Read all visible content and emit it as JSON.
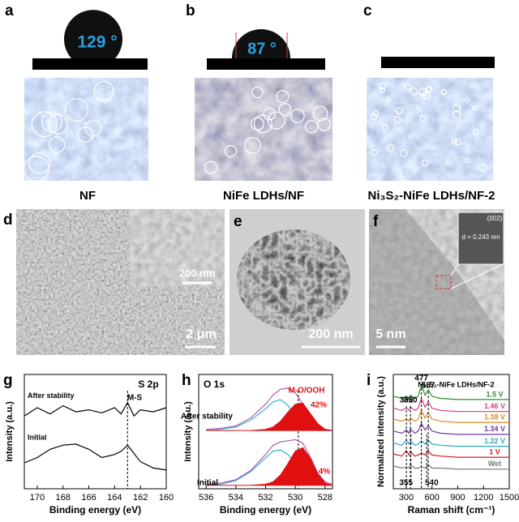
{
  "panels": [
    {
      "label": "a",
      "angle": "129 °",
      "caption": "NF"
    },
    {
      "label": "b",
      "angle": "87 °",
      "caption": "NiFe LDHs/NF"
    },
    {
      "label": "c",
      "caption": "Ni₃S₂-NiFe LDHs/NF-2"
    }
  ],
  "microscopy": [
    {
      "label": "d",
      "scale_bars": [
        "200 nm",
        "2 μm"
      ]
    },
    {
      "label": "e",
      "scale_bars": [
        "200 nm"
      ]
    },
    {
      "label": "f",
      "scale_bars": [
        "5 nm"
      ],
      "inset": [
        "(002)",
        "d = 0.243 nm"
      ]
    }
  ],
  "chart_data": [
    {
      "type": "line",
      "label": "g",
      "title": "S 2p",
      "xlabel": "Binding energy (eV)",
      "ylabel": "Intensity (a.u.)",
      "x": [
        171,
        170,
        169,
        168,
        167,
        166,
        165,
        164,
        163.5,
        163,
        162.5,
        162,
        161,
        160
      ],
      "xlim": [
        171,
        160
      ],
      "ylim": [
        0,
        11
      ],
      "xticks": [
        170,
        168,
        166,
        164,
        162,
        160
      ],
      "series": [
        {
          "name": "After stability",
          "color": "#000000",
          "values": [
            7.0,
            7.8,
            7.2,
            8.0,
            7.4,
            7.6,
            7.3,
            7.8,
            7.2,
            8.3,
            7.0,
            7.6,
            7.4,
            7.8
          ]
        },
        {
          "name": "Initial",
          "color": "#000000",
          "values": [
            2.5,
            3.0,
            3.8,
            4.2,
            4.3,
            3.8,
            3.0,
            3.3,
            3.6,
            4.2,
            3.4,
            2.6,
            2.0,
            1.8
          ]
        }
      ],
      "annotations": [
        "M-S"
      ],
      "reference_lines": [
        163
      ]
    },
    {
      "type": "line",
      "label": "h",
      "title": "O 1s",
      "xlabel": "Binding energy (eV)",
      "ylabel": "Intensity (a.u.)",
      "x": [
        536,
        535,
        534,
        533,
        532,
        531.5,
        531,
        530.5,
        530,
        529.5,
        529,
        528.5,
        528,
        527.5
      ],
      "xlim": [
        536.5,
        527.5
      ],
      "ylim": [
        0,
        10
      ],
      "xticks": [
        536,
        534,
        532,
        530,
        528
      ],
      "series": [
        {
          "color": "#b05ab8",
          "values": [
            5.2,
            5.3,
            5.5,
            6.2,
            7.4,
            8.2,
            8.7,
            8.8,
            8.4,
            7.4,
            6.2,
            5.5,
            5.2,
            5.1
          ]
        },
        {
          "color": "#33b5c8",
          "values": [
            5.1,
            5.2,
            5.4,
            6.0,
            7.0,
            7.6,
            7.8,
            7.3,
            6.4,
            5.6,
            5.2,
            5.1,
            5.1,
            5.1
          ]
        },
        {
          "color": "#e01010",
          "fill": true,
          "values": [
            5.1,
            5.1,
            5.1,
            5.1,
            5.2,
            5.4,
            5.9,
            6.7,
            7.4,
            7.5,
            6.6,
            5.7,
            5.2,
            5.1
          ]
        },
        {
          "color": "#b05ab8",
          "values": [
            0.4,
            0.5,
            0.8,
            1.6,
            3.0,
            3.8,
            4.1,
            4.2,
            4.3,
            4.0,
            2.8,
            1.4,
            0.6,
            0.4
          ]
        },
        {
          "color": "#33b5c8",
          "values": [
            0.3,
            0.4,
            0.7,
            1.5,
            2.7,
            3.3,
            3.4,
            3.0,
            2.2,
            1.3,
            0.7,
            0.4,
            0.3,
            0.3
          ]
        },
        {
          "color": "#e01010",
          "fill": true,
          "values": [
            0.3,
            0.3,
            0.3,
            0.3,
            0.4,
            0.6,
            1.2,
            2.2,
            3.3,
            3.6,
            2.7,
            1.3,
            0.5,
            0.3
          ]
        }
      ],
      "annotations": [
        "M-O/OOH",
        "42%",
        "After stability",
        "Initial",
        "34.4%"
      ],
      "reference_lines": [
        529.8
      ]
    },
    {
      "type": "line",
      "label": "i",
      "title": "Ni₃S₂-NiFe LDHs/NF-2",
      "xlabel": "Raman shift (cm⁻¹)",
      "ylabel": "Normalized intensity (a.u.)",
      "x": [
        150,
        250,
        302,
        330,
        350,
        400,
        440,
        477,
        520,
        557,
        600,
        700,
        900,
        1200,
        1500
      ],
      "xlim": [
        150,
        1500
      ],
      "ylim": [
        0,
        10.5
      ],
      "xticks": [
        300,
        600,
        900,
        1200,
        1500
      ],
      "series": [
        {
          "name": "1.5 V",
          "color": "#2e8b2e",
          "values": [
            8.5,
            8.3,
            8.5,
            8.3,
            8.6,
            8.3,
            8.5,
            9.5,
            8.6,
            9.1,
            8.5,
            8.3,
            8.2,
            8.2,
            8.2
          ]
        },
        {
          "name": "1.46 V",
          "color": "#d23c8c",
          "values": [
            7.4,
            7.2,
            7.4,
            7.2,
            7.5,
            7.2,
            7.4,
            8.3,
            7.5,
            8.0,
            7.4,
            7.2,
            7.1,
            7.1,
            7.1
          ]
        },
        {
          "name": "1.38 V",
          "color": "#e08a1e",
          "values": [
            6.4,
            6.2,
            6.4,
            6.2,
            6.5,
            6.2,
            6.4,
            7.2,
            6.5,
            7.0,
            6.4,
            6.2,
            6.1,
            6.1,
            6.1
          ]
        },
        {
          "name": "1.34 V",
          "color": "#6a3aa8",
          "values": [
            5.3,
            5.1,
            5.4,
            5.1,
            5.5,
            5.1,
            5.3,
            6.0,
            5.4,
            5.8,
            5.3,
            5.1,
            5.0,
            5.0,
            5.0
          ]
        },
        {
          "name": "1.22 V",
          "color": "#2aa7c9",
          "values": [
            4.2,
            4.0,
            4.5,
            4.1,
            4.4,
            4.0,
            4.1,
            4.4,
            4.1,
            4.5,
            4.1,
            4.0,
            3.9,
            3.9,
            3.9
          ]
        },
        {
          "name": "1 V",
          "color": "#d32020",
          "values": [
            3.2,
            3.0,
            3.5,
            3.1,
            3.4,
            3.0,
            3.1,
            3.3,
            3.1,
            3.5,
            3.1,
            3.0,
            2.9,
            2.9,
            2.9
          ]
        },
        {
          "name": "Wet",
          "color": "#777777",
          "values": [
            2.1,
            1.9,
            2.0,
            1.9,
            2.2,
            1.9,
            1.9,
            2.0,
            1.9,
            2.2,
            1.9,
            1.9,
            1.8,
            1.8,
            1.8
          ]
        }
      ],
      "peaks_top": [
        302,
        350,
        477,
        557
      ],
      "peaks_bottom": [
        355,
        540
      ]
    }
  ]
}
